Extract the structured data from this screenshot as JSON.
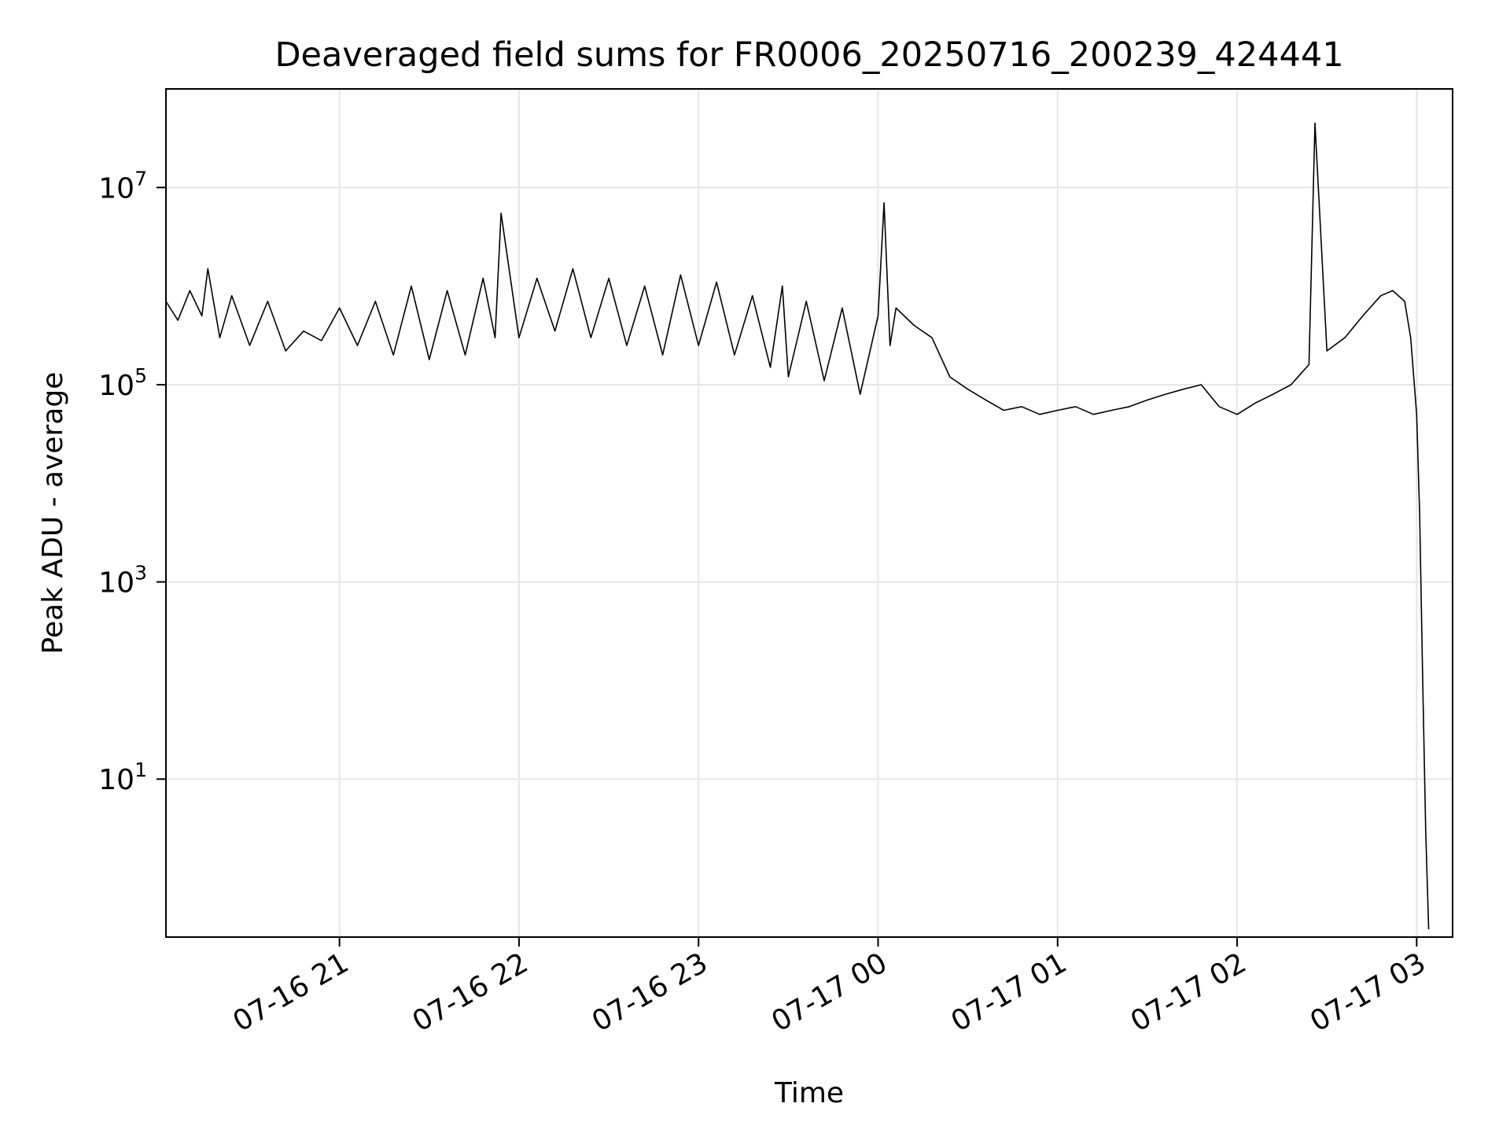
{
  "chart_data": {
    "type": "line",
    "title": "Deaveraged field sums for FR0006_20250716_200239_424441",
    "xlabel": "Time",
    "ylabel": "Peak ADU - average",
    "xscale": "time",
    "yscale": "log",
    "xlim": [
      "2025-07-16 20:02",
      "2025-07-17 03:12"
    ],
    "ylim": [
      0.25,
      100000000
    ],
    "grid": true,
    "legend": "none",
    "x_ticks": [
      "2025-07-16 21:00",
      "2025-07-16 22:00",
      "2025-07-16 23:00",
      "2025-07-17 00:00",
      "2025-07-17 01:00",
      "2025-07-17 02:00",
      "2025-07-17 03:00"
    ],
    "x_tick_labels": [
      "07-16 21",
      "07-16 22",
      "07-16 23",
      "07-17 00",
      "07-17 01",
      "07-17 02",
      "07-17 03"
    ],
    "y_ticks": [
      10,
      1000,
      100000,
      10000000
    ],
    "y_tick_labels": [
      {
        "base": "10",
        "exp": "1"
      },
      {
        "base": "10",
        "exp": "3"
      },
      {
        "base": "10",
        "exp": "5"
      },
      {
        "base": "10",
        "exp": "7"
      }
    ],
    "series": [
      {
        "color": "#000000",
        "x": [
          "2025-07-16 20:02",
          "2025-07-16 20:06",
          "2025-07-16 20:10",
          "2025-07-16 20:14",
          "2025-07-16 20:16",
          "2025-07-16 20:20",
          "2025-07-16 20:24",
          "2025-07-16 20:30",
          "2025-07-16 20:36",
          "2025-07-16 20:42",
          "2025-07-16 20:48",
          "2025-07-16 20:54",
          "2025-07-16 21:00",
          "2025-07-16 21:06",
          "2025-07-16 21:12",
          "2025-07-16 21:18",
          "2025-07-16 21:24",
          "2025-07-16 21:30",
          "2025-07-16 21:36",
          "2025-07-16 21:42",
          "2025-07-16 21:48",
          "2025-07-16 21:52",
          "2025-07-16 21:54",
          "2025-07-16 22:00",
          "2025-07-16 22:06",
          "2025-07-16 22:12",
          "2025-07-16 22:18",
          "2025-07-16 22:24",
          "2025-07-16 22:30",
          "2025-07-16 22:36",
          "2025-07-16 22:42",
          "2025-07-16 22:48",
          "2025-07-16 22:54",
          "2025-07-16 23:00",
          "2025-07-16 23:06",
          "2025-07-16 23:12",
          "2025-07-16 23:18",
          "2025-07-16 23:24",
          "2025-07-16 23:28",
          "2025-07-16 23:30",
          "2025-07-16 23:36",
          "2025-07-16 23:42",
          "2025-07-16 23:48",
          "2025-07-16 23:54",
          "2025-07-17 00:00",
          "2025-07-17 00:02",
          "2025-07-17 00:04",
          "2025-07-17 00:06",
          "2025-07-17 00:12",
          "2025-07-17 00:18",
          "2025-07-17 00:24",
          "2025-07-17 00:30",
          "2025-07-17 00:36",
          "2025-07-17 00:42",
          "2025-07-17 00:48",
          "2025-07-17 00:54",
          "2025-07-17 01:00",
          "2025-07-17 01:06",
          "2025-07-17 01:12",
          "2025-07-17 01:18",
          "2025-07-17 01:24",
          "2025-07-17 01:30",
          "2025-07-17 01:36",
          "2025-07-17 01:42",
          "2025-07-17 01:48",
          "2025-07-17 01:54",
          "2025-07-17 02:00",
          "2025-07-17 02:06",
          "2025-07-17 02:12",
          "2025-07-17 02:18",
          "2025-07-17 02:24",
          "2025-07-17 02:26",
          "2025-07-17 02:30",
          "2025-07-17 02:36",
          "2025-07-17 02:42",
          "2025-07-17 02:48",
          "2025-07-17 02:52",
          "2025-07-17 02:56",
          "2025-07-17 02:58",
          "2025-07-17 03:00",
          "2025-07-17 03:01",
          "2025-07-17 03:02",
          "2025-07-17 03:03",
          "2025-07-17 03:04"
        ],
        "y": [
          700000,
          450000,
          900000,
          500000,
          1500000,
          300000,
          800000,
          250000,
          700000,
          220000,
          350000,
          280000,
          600000,
          250000,
          700000,
          200000,
          1000000,
          180000,
          900000,
          200000,
          1200000,
          300000,
          5500000,
          300000,
          1200000,
          350000,
          1500000,
          300000,
          1200000,
          250000,
          1000000,
          200000,
          1300000,
          250000,
          1100000,
          200000,
          800000,
          150000,
          1000000,
          120000,
          700000,
          110000,
          600000,
          80000,
          500000,
          7000000,
          250000,
          600000,
          400000,
          300000,
          120000,
          90000,
          70000,
          55000,
          60000,
          50000,
          55000,
          60000,
          50000,
          55000,
          60000,
          70000,
          80000,
          90000,
          100000,
          60000,
          50000,
          65000,
          80000,
          100000,
          160000,
          45000000,
          220000,
          300000,
          500000,
          800000,
          900000,
          700000,
          300000,
          50000,
          5000,
          100,
          3,
          0.3
        ]
      }
    ]
  }
}
